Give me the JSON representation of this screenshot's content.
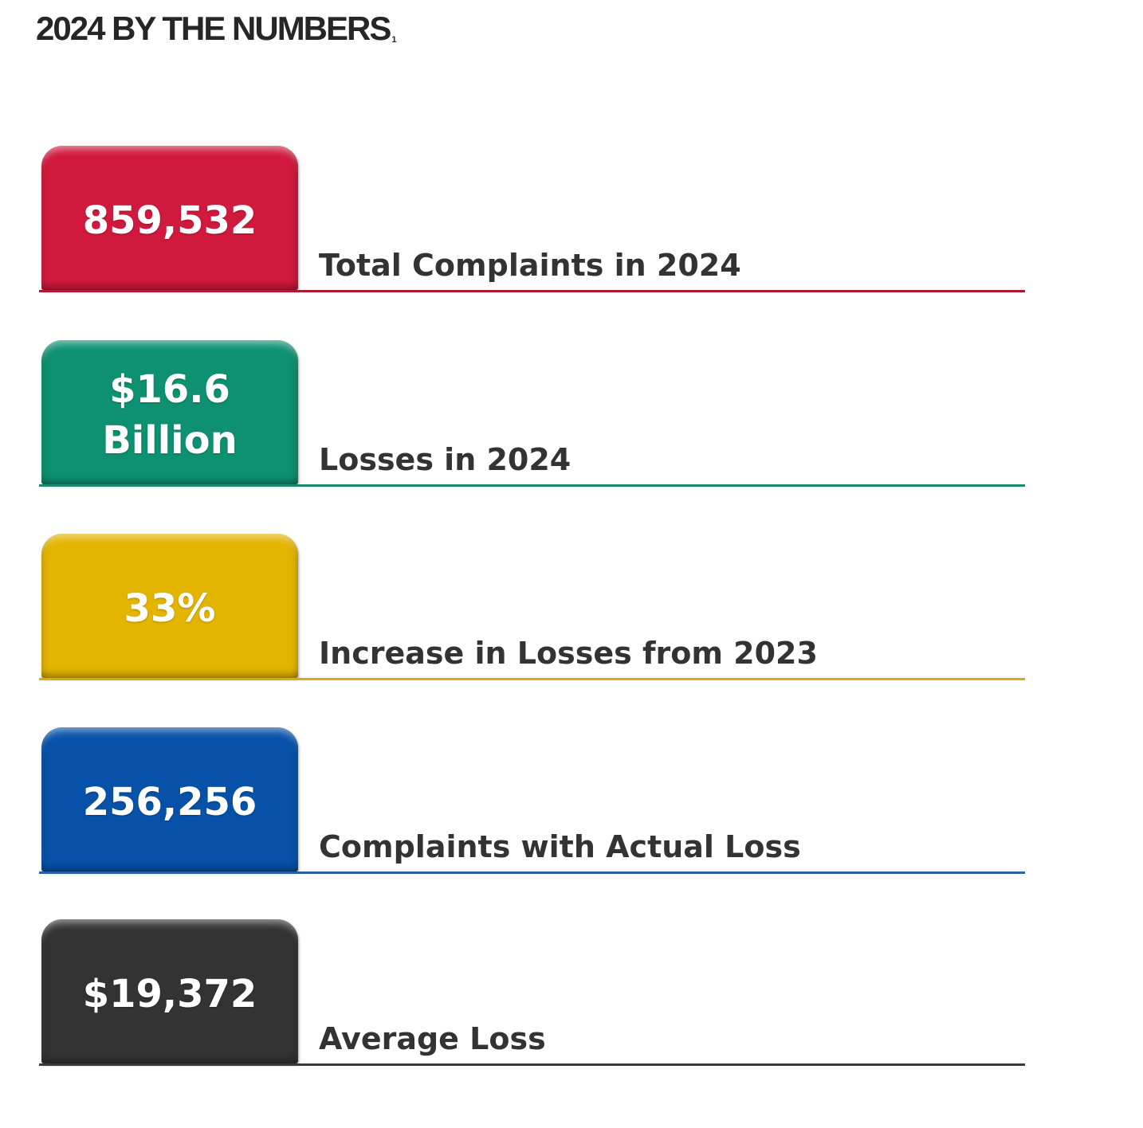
{
  "title": "2024 BY THE NUMBERS",
  "title_footnote": "1",
  "stats": [
    {
      "value": "859,532",
      "label": "Total Complaints in 2024",
      "color": "#d0193d",
      "rule_color": "#b01834"
    },
    {
      "value": "$16.6\nBillion",
      "label": "Losses in 2024",
      "color": "#0e9170",
      "rule_color": "#1a8a6d"
    },
    {
      "value": "33%",
      "label": "Increase in Losses from 2023",
      "color": "#e3b500",
      "rule_color": "#d8ac0f"
    },
    {
      "value": "256,256",
      "label": "Complaints with Actual Loss",
      "color": "#0752a8",
      "rule_color": "#2a5fa8"
    },
    {
      "value": "$19,372",
      "label": "Average Loss",
      "color": "#333333",
      "rule_color": "#3a3a3a"
    }
  ]
}
